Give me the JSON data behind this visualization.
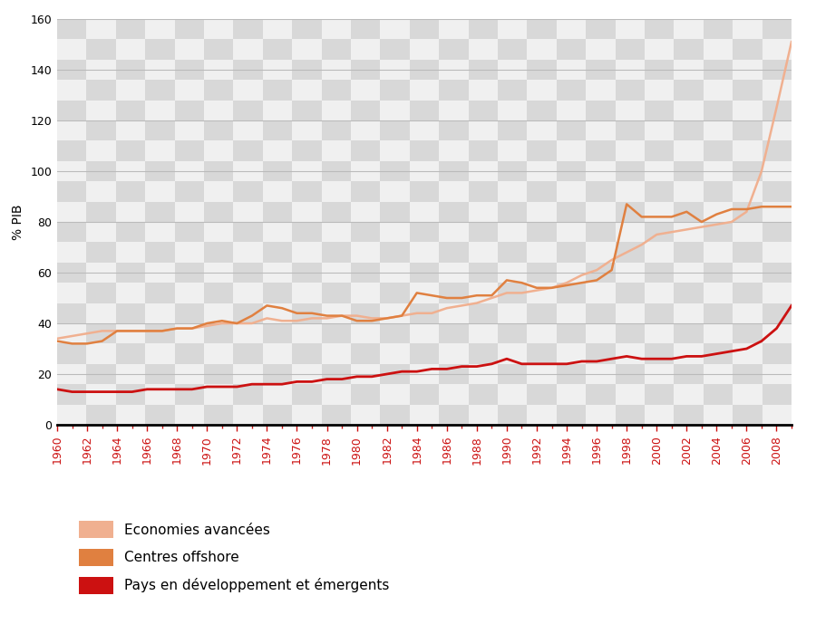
{
  "ylabel": "% PIB",
  "ylim": [
    0,
    160
  ],
  "yticks": [
    0,
    20,
    40,
    60,
    80,
    100,
    120,
    140,
    160
  ],
  "years": [
    1960,
    1961,
    1962,
    1963,
    1964,
    1965,
    1966,
    1967,
    1968,
    1969,
    1970,
    1971,
    1972,
    1973,
    1974,
    1975,
    1976,
    1977,
    1978,
    1979,
    1980,
    1981,
    1982,
    1983,
    1984,
    1985,
    1986,
    1987,
    1988,
    1989,
    1990,
    1991,
    1992,
    1993,
    1994,
    1995,
    1996,
    1997,
    1998,
    1999,
    2000,
    2001,
    2002,
    2003,
    2004,
    2005,
    2006,
    2007,
    2008,
    2009
  ],
  "economies_avancees": [
    34,
    35,
    36,
    37,
    37,
    37,
    37,
    37,
    38,
    38,
    39,
    40,
    40,
    40,
    42,
    41,
    41,
    42,
    42,
    43,
    43,
    42,
    42,
    43,
    44,
    44,
    46,
    47,
    48,
    50,
    52,
    52,
    53,
    54,
    56,
    59,
    61,
    65,
    68,
    71,
    75,
    76,
    77,
    78,
    79,
    80,
    84,
    100,
    125,
    151
  ],
  "centres_offshore": [
    33,
    32,
    32,
    33,
    37,
    37,
    37,
    37,
    38,
    38,
    40,
    41,
    40,
    43,
    47,
    46,
    44,
    44,
    43,
    43,
    41,
    41,
    42,
    43,
    52,
    51,
    50,
    50,
    51,
    51,
    57,
    56,
    54,
    54,
    55,
    56,
    57,
    61,
    87,
    82,
    82,
    82,
    84,
    80,
    83,
    85,
    85,
    86,
    86,
    86
  ],
  "pays_developpement": [
    14,
    13,
    13,
    13,
    13,
    13,
    14,
    14,
    14,
    14,
    15,
    15,
    15,
    16,
    16,
    16,
    17,
    17,
    18,
    18,
    19,
    19,
    20,
    21,
    21,
    22,
    22,
    23,
    23,
    24,
    26,
    24,
    24,
    24,
    24,
    25,
    25,
    26,
    27,
    26,
    26,
    26,
    27,
    27,
    28,
    29,
    30,
    33,
    38,
    47
  ],
  "color_economies": "#f0b090",
  "color_offshore": "#e08040",
  "color_pays": "#cc1111",
  "legend_labels": [
    "Economies avancées",
    "Centres offshore",
    "Pays en développement et émergents"
  ],
  "grid_color": "#bbbbbb",
  "tick_color": "#cc1111",
  "bg_checkerboard_light": "#f0f0f0",
  "bg_checkerboard_dark": "#d8d8d8",
  "xtick_years": [
    1960,
    1962,
    1964,
    1966,
    1968,
    1970,
    1972,
    1974,
    1976,
    1978,
    1980,
    1982,
    1984,
    1986,
    1988,
    1990,
    1992,
    1994,
    1996,
    1998,
    2000,
    2002,
    2004,
    2006,
    2008
  ]
}
